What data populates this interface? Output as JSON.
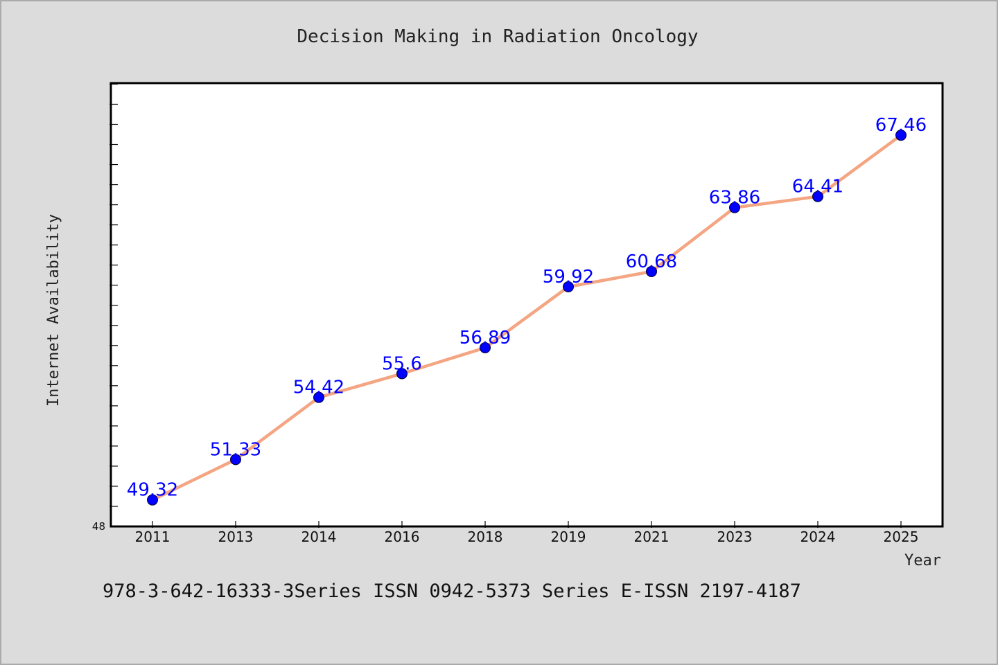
{
  "chart_data": {
    "type": "line",
    "title": "Decision Making in Radiation Oncology",
    "xlabel": "Year",
    "ylabel": "Internet Availability",
    "categories": [
      "2011",
      "2013",
      "2014",
      "2016",
      "2018",
      "2019",
      "2021",
      "2023",
      "2024",
      "2025"
    ],
    "series": [
      {
        "values": [
          49.32,
          51.33,
          54.42,
          55.6,
          56.89,
          59.92,
          60.68,
          63.86,
          64.41,
          67.46
        ],
        "data_labels": [
          "49.32",
          "51.33",
          "54.42",
          "55.6",
          "56.89",
          "59.92",
          "60.68",
          "63.86",
          "64.41",
          "67.46"
        ]
      }
    ],
    "y_tick_labels": [
      "48"
    ],
    "ylim": [
      48,
      70.05
    ],
    "y_minor_tick_step": 1,
    "grid": false,
    "legend": "none",
    "colors": {
      "line": "#f4a582",
      "marker": "#0000ff",
      "data_label": "#0000ff",
      "background": "#dcdcdc",
      "plot_background": "#ffffff"
    }
  },
  "footer": {
    "text": "978-3-642-16333-3Series ISSN 0942-5373 Series E-ISSN 2197-4187"
  }
}
